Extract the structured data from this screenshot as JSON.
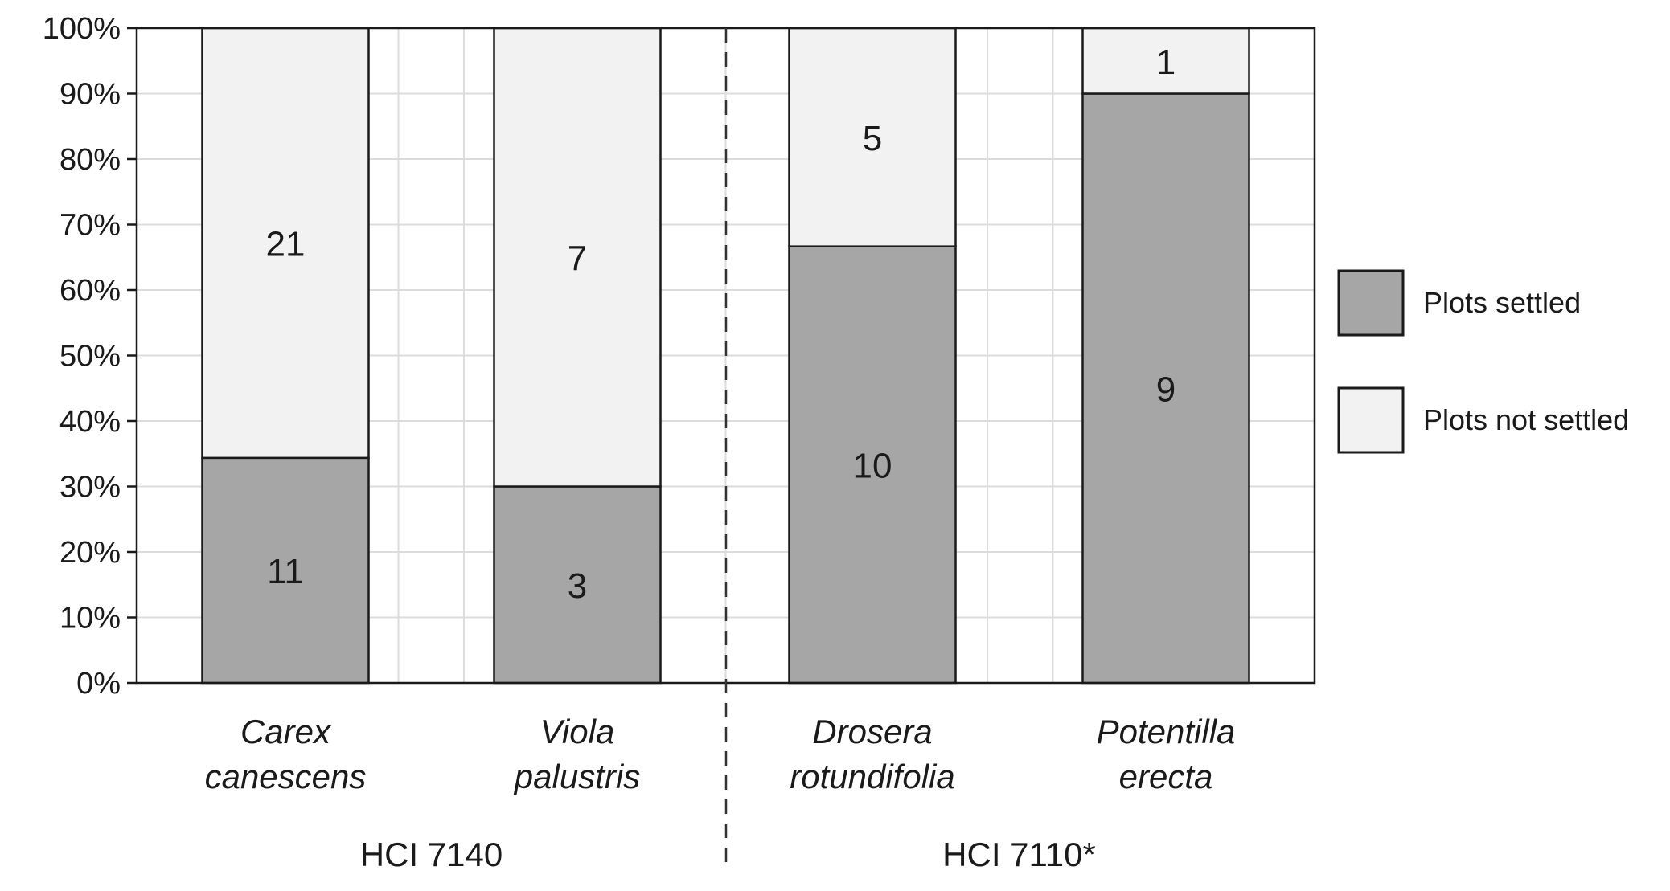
{
  "chart_data": {
    "type": "bar",
    "stacked": "percent",
    "categories": [
      [
        "Carex",
        "canescens"
      ],
      [
        "Viola",
        "palustris"
      ],
      [
        "Drosera",
        "rotundifolia"
      ],
      [
        "Potentilla",
        "erecta"
      ]
    ],
    "groups": [
      {
        "label": "HCI 7140",
        "categories": [
          0,
          1
        ]
      },
      {
        "label": "HCI 7110*",
        "categories": [
          2,
          3
        ]
      }
    ],
    "series": [
      {
        "name": "Plots settled",
        "values": [
          11,
          3,
          10,
          9
        ],
        "color": "#a6a6a6"
      },
      {
        "name": "Plots not settled",
        "values": [
          21,
          7,
          5,
          1
        ],
        "color": "#f2f2f2"
      }
    ],
    "yticks": [
      "0%",
      "10%",
      "20%",
      "30%",
      "40%",
      "50%",
      "60%",
      "70%",
      "80%",
      "90%",
      "100%"
    ],
    "ylim": [
      0,
      100
    ],
    "grid": true,
    "legend_position": "right",
    "title": "",
    "xlabel": "",
    "ylabel": ""
  }
}
